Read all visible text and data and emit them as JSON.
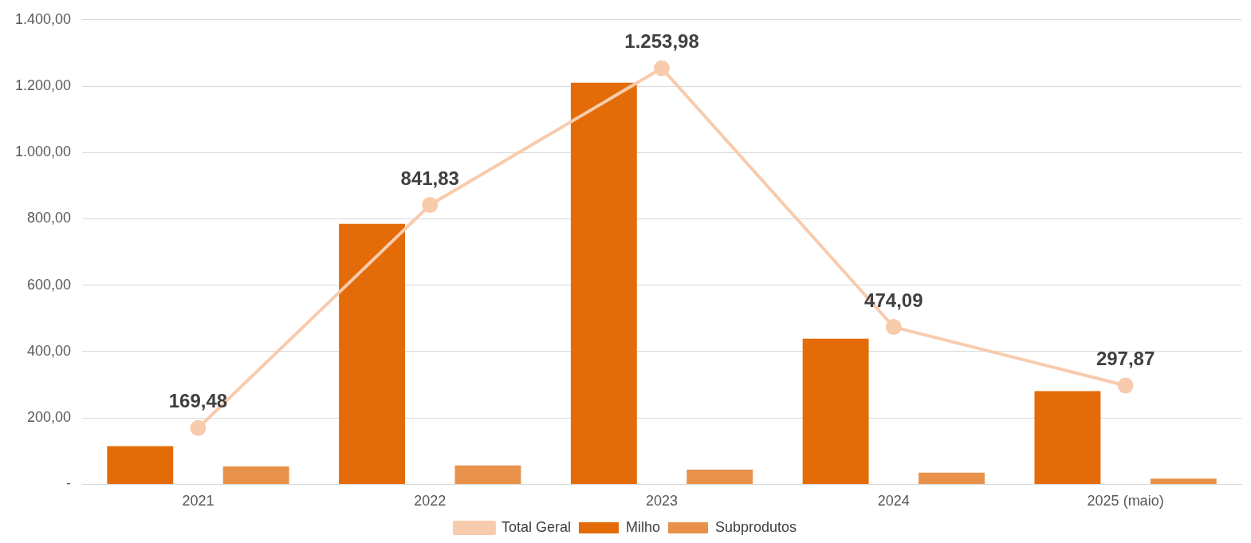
{
  "chart_data": {
    "type": "bar",
    "categories": [
      "2021",
      "2022",
      "2023",
      "2024",
      "2025 (maio)"
    ],
    "series": [
      {
        "name": "Milho",
        "color": "#e36c09",
        "values": [
          115,
          785,
          1210,
          439,
          281
        ]
      },
      {
        "name": "Subprodutos",
        "color": "#e8914a",
        "values": [
          54,
          57,
          44,
          35,
          17
        ]
      },
      {
        "name": "Total Geral",
        "type": "line",
        "color": "#f8cbad",
        "marker": "circle",
        "values": [
          169.48,
          841.83,
          1253.98,
          474.09,
          297.87
        ],
        "value_labels": [
          "169,48",
          "841,83",
          "1.253,98",
          "474,09",
          "297,87"
        ]
      }
    ],
    "ylim": [
      0,
      1400
    ],
    "yticks": [
      {
        "value": 0,
        "label": "-"
      },
      {
        "value": 200,
        "label": "200,00"
      },
      {
        "value": 400,
        "label": "400,00"
      },
      {
        "value": 600,
        "label": "600,00"
      },
      {
        "value": 800,
        "label": "800,00"
      },
      {
        "value": 1000,
        "label": "1.000,00"
      },
      {
        "value": 1200,
        "label": "1.200,00"
      },
      {
        "value": 1400,
        "label": "1.400,00"
      }
    ],
    "grid": "y",
    "legend": "bottom"
  }
}
